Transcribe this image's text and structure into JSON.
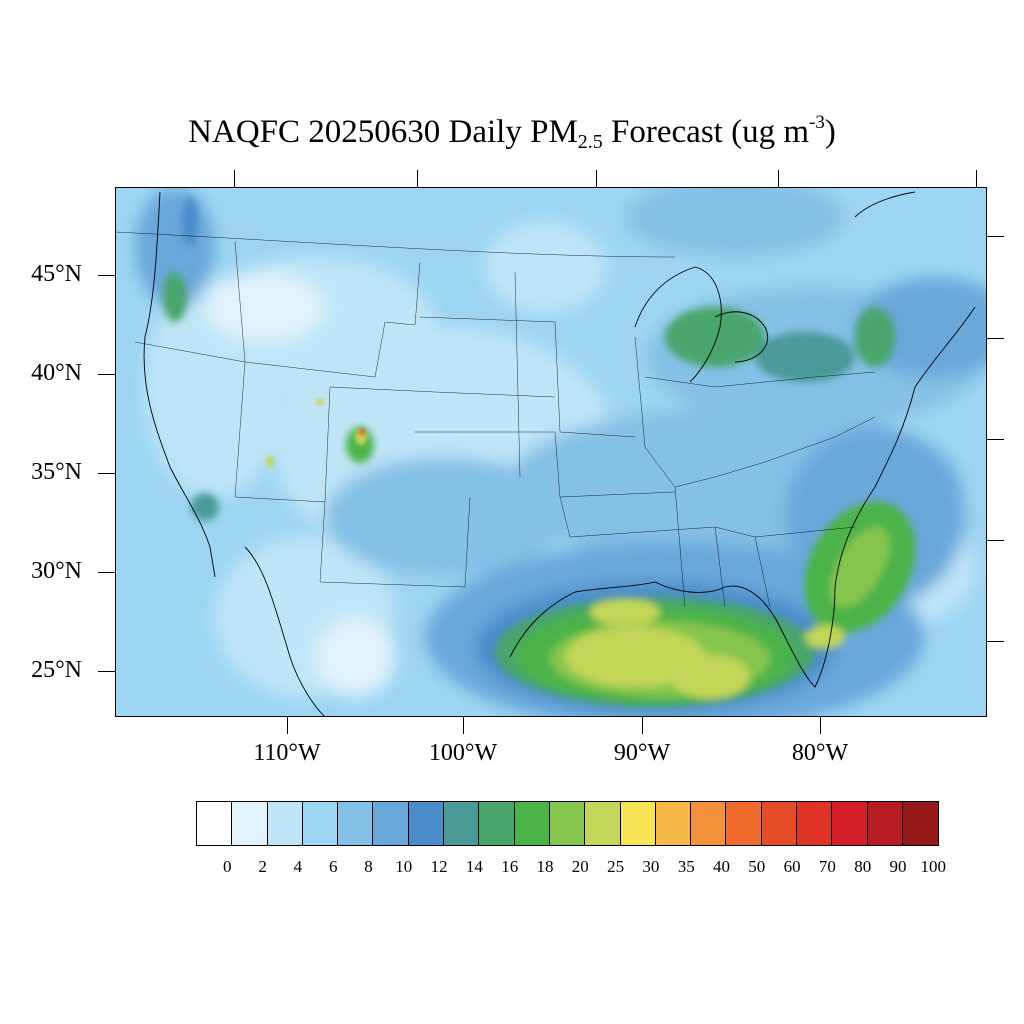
{
  "title": {
    "main": "NAQFC 20250630 Daily PM",
    "subscript": "2.5",
    "tail": " Forecast (ug m",
    "superscript": "-3",
    "close": ")"
  },
  "map": {
    "latitude_labels": [
      "45°N",
      "40°N",
      "35°N",
      "30°N",
      "25°N"
    ],
    "longitude_labels": [
      "110°W",
      "100°W",
      "90°W",
      "80°W"
    ]
  },
  "colorbar": {
    "labels": [
      "0",
      "2",
      "4",
      "6",
      "8",
      "10",
      "12",
      "14",
      "16",
      "18",
      "20",
      "25",
      "30",
      "35",
      "40",
      "50",
      "60",
      "70",
      "80",
      "90",
      "100"
    ],
    "colors": [
      "#ffffff",
      "#e1f2fb",
      "#bfe5f7",
      "#9dd6f2",
      "#85c0e6",
      "#6aa7db",
      "#4a8cca",
      "#4a9a98",
      "#48a56c",
      "#4cb348",
      "#86c54e",
      "#c3d658",
      "#f6e454",
      "#f6b846",
      "#f3923a",
      "#ef6a2c",
      "#e54d29",
      "#de3326",
      "#d21f28",
      "#b71c22",
      "#941918"
    ]
  }
}
